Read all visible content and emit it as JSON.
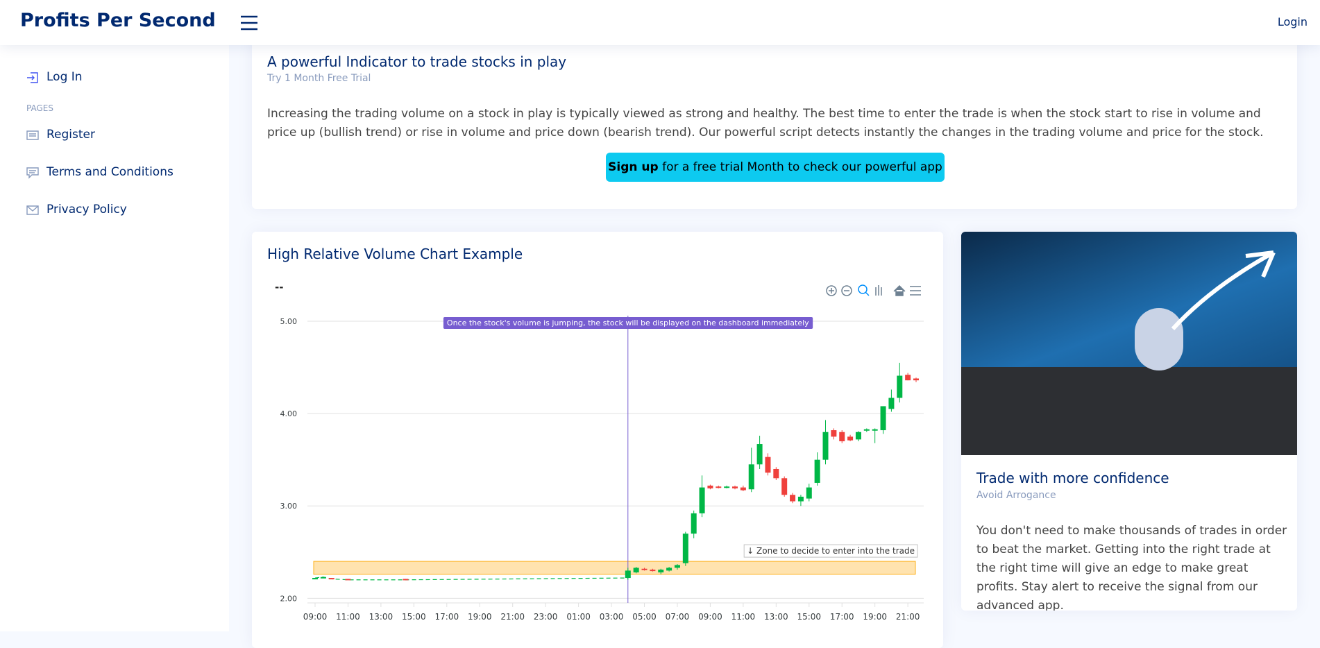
{
  "header": {
    "brand": "Profits Per Second",
    "login": "Login"
  },
  "sidebar": {
    "login": "Log In",
    "section": "PAGES",
    "items": [
      "Register",
      "Terms and Conditions",
      "Privacy Policy"
    ]
  },
  "intro": {
    "title": "A powerful Indicator to trade stocks in play",
    "subtitle": "Try 1 Month Free Trial",
    "text": "Increasing the trading volume on a stock in play is typically viewed as strong and healthy. The best time to enter the trade is when the stock start to rise in volume and price up (bullish trend) or rise in volume and price down (bearish trend). Our powerful script detects instantly the changes in the trading volume and price for the stock.",
    "button_bold": "Sign up",
    "button_text": "for a free trial Month to check our powerful app"
  },
  "feature": {
    "title": "Trade with more confidence",
    "subtitle": "Avoid Arrogance",
    "text": "You don't need to make thousands of trades in order to beat the market. Getting into the right trade at the right time will give an edge to make great profits. Stay alert to receive the signal from our advanced app."
  },
  "chart_data": {
    "type": "candlestick",
    "title": "High Relative Volume Chart Example",
    "subtitle": "--",
    "categories": [
      "09:00",
      null,
      null,
      null,
      "11:00",
      null,
      null,
      null,
      "13:00",
      null,
      null,
      null,
      "15:00",
      null,
      null,
      null,
      "17:00",
      null,
      null,
      null,
      "19:00",
      null,
      null,
      null,
      "21:00",
      null,
      null,
      null,
      "23:00",
      null,
      null,
      null,
      "01:00",
      null,
      null,
      null,
      "03:00",
      null,
      null,
      null,
      "05:00",
      null,
      null,
      null,
      "07:00",
      null,
      null,
      null,
      "09:00",
      null,
      null,
      null,
      "11:00",
      null,
      null,
      null,
      "13:00",
      null,
      null,
      null,
      "15:00",
      null,
      null,
      null,
      "17:00",
      null,
      null,
      null,
      "19:00",
      null,
      null,
      null,
      "21:00",
      null
    ],
    "open": [
      2.21,
      2.22,
      2.22,
      null,
      2.21,
      null,
      null,
      null,
      null,
      null,
      null,
      2.21,
      null,
      null,
      null,
      null,
      null,
      null,
      null,
      null,
      null,
      null,
      null,
      null,
      null,
      null,
      null,
      null,
      null,
      null,
      null,
      null,
      null,
      null,
      null,
      null,
      null,
      null,
      2.22,
      2.28,
      2.32,
      2.31,
      2.28,
      2.3,
      2.33,
      2.38,
      2.7,
      2.92,
      3.22,
      3.21,
      3.2,
      3.21,
      3.2,
      3.18,
      3.45,
      3.53,
      3.4,
      3.3,
      3.12,
      3.05,
      3.08,
      3.25,
      3.5,
      3.82,
      3.8,
      3.75,
      3.72,
      3.82,
      3.82,
      3.82,
      4.05,
      4.17,
      4.42,
      4.38
    ],
    "high": [
      2.22,
      2.23,
      2.22,
      null,
      2.21,
      null,
      null,
      null,
      null,
      null,
      null,
      2.21,
      null,
      null,
      null,
      null,
      null,
      null,
      null,
      null,
      null,
      null,
      null,
      null,
      null,
      null,
      null,
      null,
      null,
      null,
      null,
      null,
      null,
      null,
      null,
      null,
      null,
      null,
      2.33,
      2.34,
      2.33,
      2.32,
      2.32,
      2.34,
      2.37,
      2.72,
      2.95,
      3.33,
      3.23,
      3.22,
      3.22,
      3.22,
      3.22,
      3.63,
      3.76,
      3.57,
      3.42,
      3.32,
      3.14,
      3.12,
      3.24,
      3.58,
      3.93,
      3.84,
      3.82,
      3.77,
      3.81,
      3.84,
      3.84,
      4.08,
      4.26,
      4.55,
      4.44,
      4.39
    ],
    "low": [
      2.21,
      2.22,
      2.21,
      null,
      2.2,
      null,
      null,
      null,
      null,
      null,
      null,
      2.2,
      null,
      null,
      null,
      null,
      null,
      null,
      null,
      null,
      null,
      null,
      null,
      null,
      null,
      null,
      null,
      null,
      null,
      null,
      null,
      null,
      null,
      null,
      null,
      null,
      null,
      null,
      2.2,
      2.27,
      2.3,
      2.29,
      2.26,
      2.29,
      2.31,
      2.35,
      2.65,
      2.88,
      3.18,
      3.19,
      3.19,
      3.18,
      3.16,
      3.15,
      3.4,
      3.33,
      3.28,
      3.1,
      3.03,
      3.0,
      3.05,
      3.22,
      3.45,
      3.72,
      3.68,
      3.7,
      3.7,
      3.8,
      3.68,
      3.78,
      4.02,
      4.12,
      4.36,
      4.34
    ],
    "close": [
      2.22,
      2.23,
      2.21,
      null,
      2.2,
      null,
      null,
      null,
      null,
      null,
      null,
      2.2,
      null,
      null,
      null,
      null,
      null,
      null,
      null,
      null,
      null,
      null,
      null,
      null,
      null,
      null,
      null,
      null,
      null,
      null,
      null,
      null,
      null,
      null,
      null,
      null,
      null,
      null,
      2.3,
      2.33,
      2.31,
      2.3,
      2.31,
      2.33,
      2.36,
      2.7,
      2.92,
      3.2,
      3.19,
      3.2,
      3.21,
      3.19,
      3.17,
      3.45,
      3.67,
      3.36,
      3.3,
      3.12,
      3.05,
      3.1,
      3.2,
      3.5,
      3.8,
      3.75,
      3.7,
      3.71,
      3.8,
      3.83,
      3.83,
      4.08,
      4.17,
      4.41,
      4.36,
      4.36
    ],
    "up_color": "#00b746",
    "down_color": "#ef403c",
    "ylim": [
      1.95,
      5.06
    ],
    "yticks": [
      {
        "value": 2,
        "label": "2.00"
      },
      {
        "value": 3,
        "label": "3.00"
      },
      {
        "value": 4,
        "label": "4.00"
      },
      {
        "value": 5,
        "label": "5.00"
      }
    ],
    "grid": true,
    "annotations": [
      {
        "text": "Once the stock's volume is jumping, the stock will be displayed on the dashboard immediately",
        "x": 38,
        "color": "#775dd0"
      },
      {
        "text": "↓ Zone to decide to enter into the trade",
        "y_range": [
          2.26,
          2.4
        ],
        "color": "#feb019"
      }
    ]
  }
}
